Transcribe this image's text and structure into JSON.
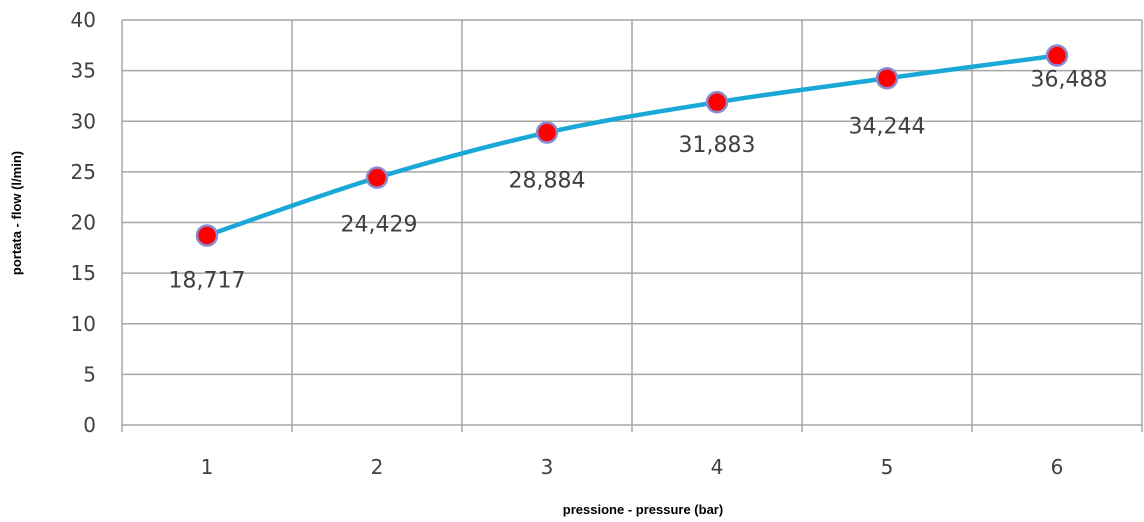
{
  "chart_data": {
    "type": "line",
    "title": "",
    "xlabel": "pressione - pressure  (bar)",
    "ylabel": "portata - flow (l/min)",
    "categories": [
      "1",
      "2",
      "3",
      "4",
      "5",
      "6"
    ],
    "series": [
      {
        "values": [
          18.717,
          24.429,
          28.884,
          31.883,
          34.244,
          36.488
        ],
        "value_labels": [
          "18,717",
          "24,429",
          "28,884",
          "31,883",
          "34,244",
          "36,488"
        ]
      }
    ],
    "y_ticks": [
      "0",
      "5",
      "10",
      "15",
      "20",
      "25",
      "30",
      "35",
      "40"
    ],
    "ylim": [
      0,
      40
    ],
    "grid": true,
    "legend": "none",
    "colors": {
      "line": "#1aa8d8",
      "marker_fill": "#ff0000",
      "marker_stroke": "#8a8ad0",
      "grid": "#a6a6a6",
      "text": "#404040"
    }
  }
}
